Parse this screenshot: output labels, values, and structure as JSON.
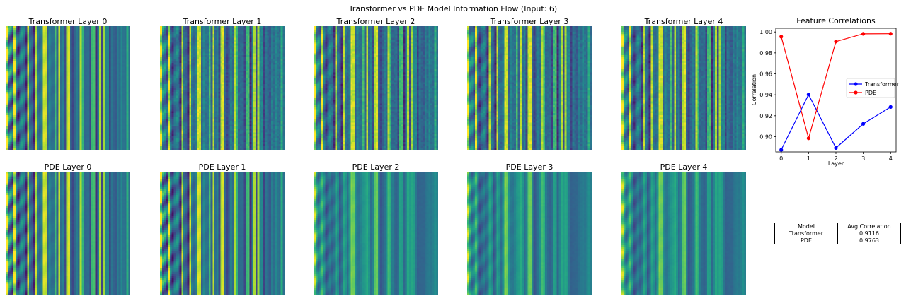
{
  "suptitle": "Transformer vs PDE Model Information Flow (Input: 6)",
  "heatmaps": {
    "transformer": [
      "Transformer Layer 0",
      "Transformer Layer 1",
      "Transformer Layer 2",
      "Transformer Layer 3",
      "Transformer Layer 4"
    ],
    "pde": [
      "PDE Layer 0",
      "PDE Layer 1",
      "PDE Layer 2",
      "PDE Layer 3",
      "PDE Layer 4"
    ],
    "colormap": "viridis"
  },
  "chart_data": {
    "type": "line",
    "title": "Feature Correlations",
    "xlabel": "Layer",
    "ylabel": "Correlation",
    "x": [
      0,
      1,
      2,
      3,
      4
    ],
    "xlim": [
      -0.2,
      4.2
    ],
    "ylim": [
      0.8855,
      1.0035
    ],
    "yticks": [
      0.9,
      0.92,
      0.94,
      0.96,
      0.98,
      1.0
    ],
    "yticklabels": [
      "0.90",
      "0.92",
      "0.94",
      "0.96",
      "0.98",
      "1.00"
    ],
    "legend_position": "center-right",
    "grid": false,
    "series": [
      {
        "name": "Transformer",
        "color": "#0000ff",
        "values": [
          0.8875,
          0.9402,
          0.8893,
          0.9123,
          0.9284
        ]
      },
      {
        "name": "PDE",
        "color": "#ff0000",
        "values": [
          0.9955,
          0.8985,
          0.9908,
          0.9982,
          0.9983
        ]
      }
    ]
  },
  "summary_table": {
    "headers": [
      "Model",
      "Avg Correlation"
    ],
    "rows": [
      [
        "Transformer",
        "0.9116"
      ],
      [
        "PDE",
        "0.9763"
      ]
    ]
  }
}
